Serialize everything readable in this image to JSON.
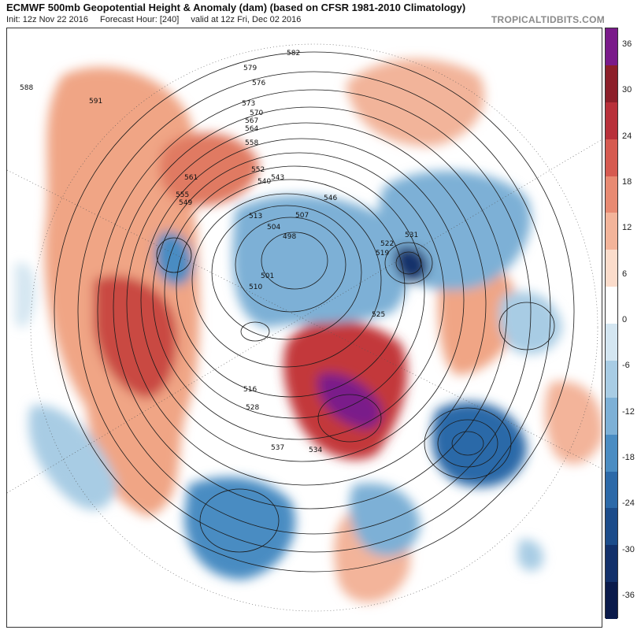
{
  "header": {
    "title": "ECMWF 500mb Geopotential Height & Anomaly (dam) (based on CFSR 1981-2010 Climatology)",
    "init": "Init: 12z Nov 22 2016",
    "forecast_hour": "Forecast Hour: [240]",
    "valid": "valid at 12z Fri, Dec 02 2016",
    "brand": "TROPICALTIDBITS.COM"
  },
  "colorbar": {
    "ticks": [
      "36",
      "30",
      "24",
      "18",
      "12",
      "6",
      "0",
      "-6",
      "-12",
      "-18",
      "-24",
      "-30",
      "-36"
    ],
    "colors": [
      "#7a1a8a",
      "#8c1f2a",
      "#b8303a",
      "#d65a50",
      "#e88a72",
      "#f3b49a",
      "#fbdccb",
      "#ffffff",
      "#d4e6f1",
      "#a8cce4",
      "#7db0d6",
      "#4a8cc2",
      "#2c69a8",
      "#1c4c8a",
      "#12306a",
      "#0a1a4a"
    ]
  },
  "contour_labels": [
    "588",
    "591",
    "582",
    "579",
    "576",
    "573",
    "570",
    "567",
    "564",
    "561",
    "558",
    "555",
    "552",
    "549",
    "546",
    "543",
    "540",
    "537",
    "534",
    "531",
    "528",
    "525",
    "522",
    "519",
    "516",
    "513",
    "510",
    "507",
    "504",
    "501",
    "498"
  ],
  "map_icons": {
    "projection": "north-polar-stereographic",
    "coastlines": "coastline-icon"
  }
}
